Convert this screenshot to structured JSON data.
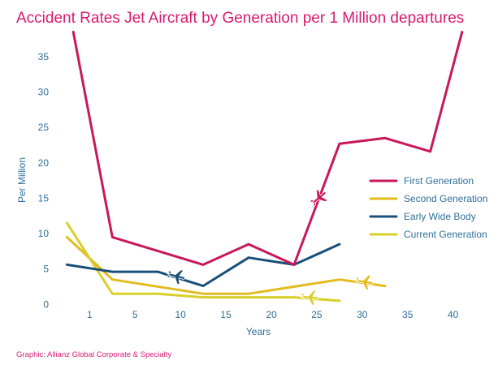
{
  "colors": {
    "magenta": "#c8185a",
    "yellow_dark": "#e2bc1e",
    "yellow_light": "#d9cf2a",
    "blue": "#1a4f7a",
    "axis_text": "#2f6f9a",
    "title": "#d81b72",
    "credit": "#d81b72"
  },
  "credit": "Graphic: Allianz Global Corporate & Specialty",
  "chart_data": {
    "type": "line",
    "title": "Accident Rates Jet Aircraft by Generation per 1 Million departures",
    "xlabel": "Years",
    "ylabel": "Per Million",
    "xlim": [
      -2,
      42
    ],
    "ylim": [
      -1,
      39
    ],
    "xticks": [
      {
        "label": "1",
        "x": 0
      },
      {
        "label": "5",
        "x": 5
      },
      {
        "label": "10",
        "x": 10
      },
      {
        "label": "15",
        "x": 15
      },
      {
        "label": "20",
        "x": 20
      },
      {
        "label": "25",
        "x": 25
      },
      {
        "label": "30",
        "x": 30
      },
      {
        "label": "35",
        "x": 35
      },
      {
        "label": "40",
        "x": 40
      }
    ],
    "yticks": [
      0,
      5,
      10,
      15,
      20,
      25,
      30,
      35
    ],
    "legend_position": "right",
    "series": [
      {
        "name": "First Generation",
        "color_key": "magenta",
        "points": [
          [
            -1.8,
            38.5
          ],
          [
            2.5,
            9.5
          ],
          [
            12.5,
            5.6
          ],
          [
            17.5,
            8.5
          ],
          [
            22.5,
            5.6
          ],
          [
            27.5,
            22.7
          ],
          [
            32.5,
            23.5
          ],
          [
            37.5,
            21.6
          ],
          [
            41,
            38.5
          ]
        ]
      },
      {
        "name": "Second Generation",
        "color_key": "yellow_dark",
        "points": [
          [
            -2.5,
            9.5
          ],
          [
            2.5,
            3.5
          ],
          [
            12.5,
            1.5
          ],
          [
            17.5,
            1.5
          ],
          [
            27.5,
            3.5
          ],
          [
            32.5,
            2.6
          ]
        ]
      },
      {
        "name": "Early Wide Body",
        "color_key": "blue",
        "points": [
          [
            -2.5,
            5.6
          ],
          [
            2.5,
            4.6
          ],
          [
            7.5,
            4.6
          ],
          [
            12.5,
            2.6
          ],
          [
            17.5,
            6.6
          ],
          [
            22.5,
            5.6
          ],
          [
            27.5,
            8.5
          ]
        ]
      },
      {
        "name": "Current Generation",
        "color_key": "yellow_light",
        "points": [
          [
            -2.5,
            11.5
          ],
          [
            2.5,
            1.5
          ],
          [
            7.5,
            1.5
          ],
          [
            12.5,
            1.0
          ],
          [
            17.5,
            1.0
          ],
          [
            22.5,
            1.0
          ],
          [
            27.5,
            0.5
          ]
        ]
      }
    ],
    "plane_markers": [
      {
        "series": "First Generation",
        "x": 25.2,
        "y": 15,
        "angle": -40
      },
      {
        "series": "Early Wide Body",
        "x": 9.5,
        "y": 4.0,
        "angle": 15
      },
      {
        "series": "Second Generation",
        "x": 30.2,
        "y": 3.2,
        "angle": 10
      },
      {
        "series": "Current Generation",
        "x": 24.2,
        "y": 1.0,
        "angle": 5
      }
    ]
  }
}
